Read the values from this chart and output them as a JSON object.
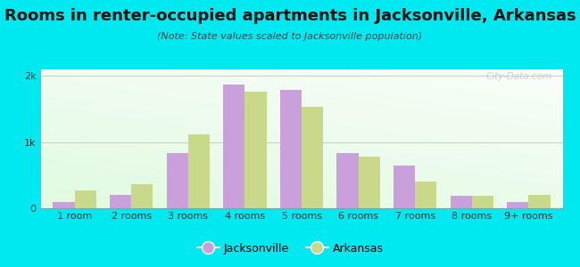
{
  "title": "Rooms in renter-occupied apartments in Jacksonville, Arkansas",
  "subtitle": "(Note: State values scaled to Jacksonville population)",
  "categories": [
    "1 room",
    "2 rooms",
    "3 rooms",
    "4 rooms",
    "5 rooms",
    "6 rooms",
    "7 rooms",
    "8 rooms",
    "9+ rooms"
  ],
  "jacksonville_values": [
    90,
    200,
    830,
    1870,
    1790,
    840,
    640,
    190,
    100
  ],
  "arkansas_values": [
    270,
    370,
    1120,
    1760,
    1530,
    780,
    400,
    190,
    200
  ],
  "jacksonville_color": "#c9a0dc",
  "arkansas_color": "#c8d98a",
  "background_color": "#00e8f0",
  "bar_width": 0.38,
  "ylim": [
    0,
    2100
  ],
  "yticks": [
    0,
    1000,
    2000
  ],
  "ytick_labels": [
    "0",
    "1k",
    "2k"
  ],
  "title_fontsize": 13,
  "subtitle_fontsize": 8,
  "legend_fontsize": 9,
  "tick_fontsize": 8,
  "watermark": "City-Data.com"
}
